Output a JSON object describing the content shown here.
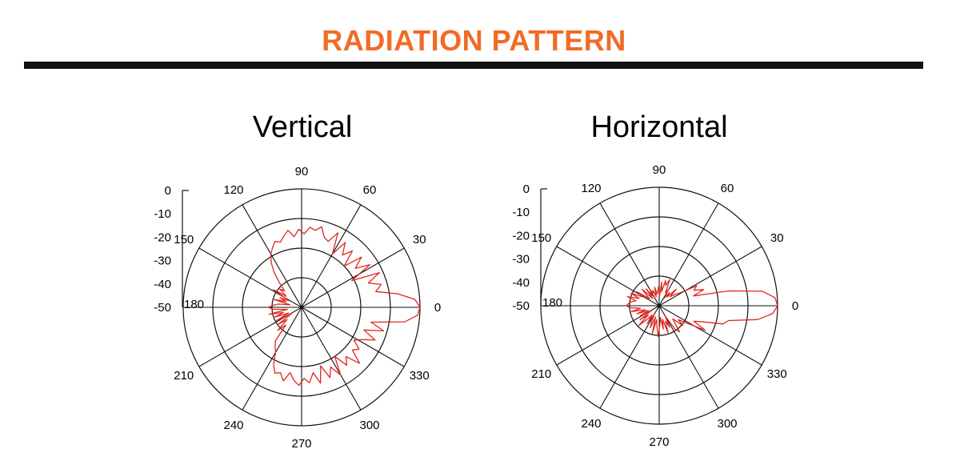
{
  "header": {
    "title": "RADIATION PATTERN",
    "title_color": "#f26b26",
    "rule_color": "#111111"
  },
  "chart_data": [
    {
      "type": "polar",
      "title": "Vertical",
      "angle_ticks": [
        "0",
        "30",
        "60",
        "90",
        "120",
        "150",
        "180",
        "210",
        "240",
        "270",
        "300",
        "330"
      ],
      "radial_ticks": [
        "0",
        "-10",
        "-20",
        "-30",
        "-40",
        "-50"
      ],
      "rlim": [
        -50,
        0
      ],
      "grid": true,
      "series_color": "#e0261f",
      "series": [
        {
          "angles_deg": [
            0,
            4,
            8,
            12,
            16,
            20,
            24,
            28,
            32,
            36,
            40,
            44,
            48,
            52,
            56,
            60,
            64,
            68,
            72,
            76,
            80,
            84,
            88,
            92,
            96,
            100,
            104,
            108,
            112,
            116,
            120,
            124,
            128,
            132,
            136,
            140,
            144,
            148,
            152,
            156,
            160,
            164,
            168,
            172,
            176,
            180,
            184,
            188,
            192,
            196,
            200,
            204,
            208,
            212,
            216,
            220,
            224,
            228,
            232,
            236,
            240,
            244,
            248,
            252,
            256,
            260,
            264,
            268,
            272,
            276,
            280,
            284,
            288,
            292,
            296,
            300,
            304,
            308,
            312,
            316,
            320,
            324,
            328,
            332,
            336,
            340,
            344,
            348,
            352,
            356
          ],
          "values_db": [
            0,
            -2,
            -9,
            -18,
            -15,
            -20,
            -14,
            -26,
            -16,
            -22,
            -17,
            -25,
            -18,
            -22,
            -17,
            -24,
            -15,
            -20,
            -19,
            -15,
            -17,
            -16,
            -19,
            -17,
            -20,
            -17,
            -19,
            -21,
            -20,
            -22,
            -24,
            -27,
            -31,
            -36,
            -40,
            -38,
            -42,
            -36,
            -44,
            -40,
            -43,
            -38,
            -45,
            -40,
            -38,
            -36,
            -38,
            -44,
            -36,
            -42,
            -38,
            -44,
            -38,
            -45,
            -38,
            -42,
            -36,
            -40,
            -32,
            -30,
            -28,
            -23,
            -20,
            -21,
            -18,
            -22,
            -19,
            -17,
            -20,
            -18,
            -22,
            -17,
            -24,
            -18,
            -22,
            -17,
            -25,
            -19,
            -22,
            -16,
            -22,
            -20,
            -24,
            -21,
            -16,
            -22,
            -14,
            -20,
            -6,
            -1
          ]
        }
      ]
    },
    {
      "type": "polar",
      "title": "Horizontal",
      "angle_ticks": [
        "0",
        "30",
        "60",
        "90",
        "120",
        "150",
        "180",
        "210",
        "240",
        "270",
        "300",
        "330"
      ],
      "radial_ticks": [
        "0",
        "-10",
        "-20",
        "-30",
        "-40",
        "-50"
      ],
      "rlim": [
        -50,
        0
      ],
      "grid": true,
      "series_color": "#e0261f",
      "series": [
        {
          "angles_deg": [
            0,
            4,
            8,
            12,
            16,
            20,
            24,
            28,
            32,
            36,
            40,
            44,
            48,
            52,
            56,
            60,
            64,
            68,
            72,
            76,
            80,
            84,
            88,
            92,
            96,
            100,
            104,
            108,
            112,
            116,
            120,
            124,
            128,
            132,
            136,
            140,
            144,
            148,
            152,
            156,
            160,
            164,
            168,
            172,
            176,
            180,
            184,
            188,
            192,
            196,
            200,
            204,
            208,
            212,
            216,
            220,
            224,
            228,
            232,
            236,
            240,
            244,
            248,
            252,
            256,
            260,
            264,
            268,
            272,
            276,
            280,
            284,
            288,
            292,
            296,
            300,
            304,
            308,
            312,
            316,
            320,
            324,
            328,
            332,
            336,
            340,
            344,
            348,
            352,
            356
          ],
          "values_db": [
            0,
            -1,
            -6,
            -20,
            -35,
            -30,
            -34,
            -32,
            -40,
            -42,
            -44,
            -40,
            -45,
            -43,
            -46,
            -42,
            -44,
            -38,
            -41,
            -39,
            -44,
            -40,
            -46,
            -42,
            -44,
            -45,
            -42,
            -46,
            -43,
            -44,
            -42,
            -45,
            -41,
            -46,
            -40,
            -43,
            -45,
            -39,
            -42,
            -37,
            -41,
            -36,
            -40,
            -38,
            -37,
            -36,
            -38,
            -42,
            -38,
            -44,
            -40,
            -45,
            -41,
            -46,
            -40,
            -44,
            -38,
            -42,
            -45,
            -41,
            -46,
            -43,
            -40,
            -45,
            -38,
            -44,
            -41,
            -37,
            -42,
            -45,
            -40,
            -44,
            -38,
            -43,
            -40,
            -45,
            -38,
            -36,
            -40,
            -42,
            -37,
            -40,
            -36,
            -28,
            -34,
            -30,
            -22,
            -20,
            -8,
            -2
          ]
        }
      ]
    }
  ]
}
